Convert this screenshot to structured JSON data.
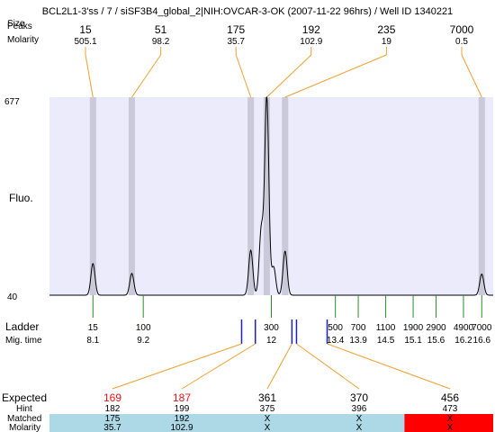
{
  "header": {
    "title": "BCL2L1-3'ss / 7 / siSF3B4_global_2|NIH:OVCAR-3-OK (2007-11-22 96hrs) / Well ID 1340221",
    "label_size": "Size",
    "label_peaks": "Peaks",
    "label_molarity": "Molarity"
  },
  "labels": {
    "fluo": "Fluo.",
    "ladder": "Ladder",
    "migtime": "Mig. time",
    "expected": "Expected",
    "hint": "Hint",
    "matched": "Matched",
    "molarity": "Molarity"
  },
  "colors": {
    "plot_bg": "#ebebfb",
    "peak_band": "#c9c9d9",
    "ladder_line": "#2e8b2e",
    "peak_line": "#1e1ec8",
    "connector": "#f0a030",
    "expected_text": "#ee1111",
    "matched_ok": "#add8e6",
    "matched_fail": "#ff0000"
  },
  "chart_data": {
    "type": "line",
    "y_ticks": [
      "677",
      "40"
    ],
    "ylim": [
      40,
      677
    ],
    "peaks": [
      {
        "size": "15",
        "molarity": "505.1",
        "time": 8.1,
        "height": 142
      },
      {
        "size": "51",
        "molarity": "98.2",
        "time": 8.95,
        "height": 110
      },
      {
        "size": "175",
        "molarity": "35.7",
        "time": 11.55,
        "height": 185
      },
      {
        "size": "192",
        "molarity": "102.9",
        "time": 11.9,
        "height": 677
      },
      {
        "size": "235",
        "molarity": "19",
        "time": 12.3,
        "height": 182
      },
      {
        "size": "7000",
        "molarity": "0.5",
        "time": 16.6,
        "height": 108
      }
    ],
    "extra_peaks": [
      {
        "time": 11.78,
        "height": 250
      },
      {
        "time": 12.05,
        "height": 130
      }
    ],
    "ladder": [
      {
        "size": "15",
        "time": "8.1"
      },
      {
        "size": "100",
        "time": "9.2"
      },
      {
        "size": "300",
        "time": "12"
      },
      {
        "size": "500",
        "time": "13.4"
      },
      {
        "size": "700",
        "time": "13.9"
      },
      {
        "size": "1100",
        "time": "14.5"
      },
      {
        "size": "1900",
        "time": "15.1"
      },
      {
        "size": "2900",
        "time": "15.6"
      },
      {
        "size": "4900",
        "time": "16.2"
      },
      {
        "size": "7000",
        "time": "16.6"
      }
    ],
    "expected": [
      {
        "value": "169",
        "hint": "182",
        "matched": "175",
        "molarity": "35.7",
        "ok": true,
        "peak_time": 11.35
      },
      {
        "value": "187",
        "hint": "199",
        "matched": "192",
        "molarity": "102.9",
        "ok": true,
        "peak_time": 11.65
      },
      {
        "value": "361",
        "hint": "375",
        "matched": "X",
        "molarity": "X",
        "ok": false,
        "peak_time": 12.45
      },
      {
        "value": "370",
        "hint": "396",
        "matched": "X",
        "molarity": "X",
        "ok": false,
        "peak_time": 12.55
      },
      {
        "value": "456",
        "hint": "473",
        "matched": "X",
        "molarity": "X",
        "ok": false,
        "peak_time": 13.22
      }
    ]
  }
}
